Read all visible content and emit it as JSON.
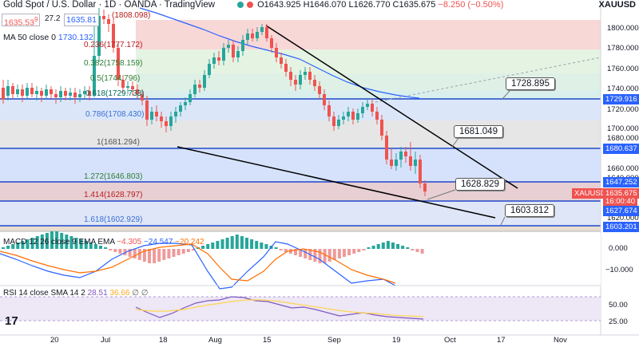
{
  "header": {
    "title": "Gold Spot / U.S. Dollar · 1D · OANDA · TradingView",
    "ohlc": {
      "o": "O1643.925",
      "h": "H1646.070",
      "l": "L1626.770",
      "c": "C1635.675",
      "chg": "−8.250 (−0.50%)"
    },
    "symbol": "XAUUSD",
    "sell_price": "1635.53",
    "sell_small": "9",
    "spread": "27.2",
    "buy_price": "1635.81"
  },
  "ma": {
    "label": "MA 50 close 0",
    "value": "1730.132"
  },
  "fib_levels": [
    {
      "label": "(1808.098)",
      "price": 1808.098
    },
    {
      "label": "0.236(1777.172)",
      "price": 1777.172
    },
    {
      "label": "0.382(1758.159)",
      "price": 1758.159
    },
    {
      "label": "0.5(1744.796)",
      "price": 1744.796
    },
    {
      "label": "0.618(1729.733)",
      "price": 1729.733
    },
    {
      "label": "0.786(1708.430)",
      "price": 1708.43
    },
    {
      "label": "1(1681.294)",
      "price": 1681.294
    },
    {
      "label": "1.272(1646.803)",
      "price": 1646.803
    },
    {
      "label": "1.414(1628.797)",
      "price": 1628.797
    },
    {
      "label": "1.618(1602.929)",
      "price": 1602.929
    }
  ],
  "callouts": [
    {
      "text": "1728.895"
    },
    {
      "text": "1681.049"
    },
    {
      "text": "1628.829"
    },
    {
      "text": "1603.812"
    }
  ],
  "price_axis": [
    "1800.000",
    "1780.000",
    "1760.000",
    "1740.000",
    "1720.000",
    "1700.000",
    "1680.000",
    "1660.000",
    "1640.000",
    "1620.000"
  ],
  "price_tags": [
    {
      "text": "1729.916",
      "color": "#2962ff"
    },
    {
      "text": "1680.637",
      "color": "#2962ff"
    },
    {
      "text": "1647.252",
      "color": "#2962ff"
    },
    {
      "text": "XAUUSD",
      "color": "#ef5350"
    },
    {
      "text": "1635.675",
      "color": "#ef5350"
    },
    {
      "text": "16:00:40",
      "color": "#ef5350"
    },
    {
      "text": "1627.674",
      "color": "#2962ff"
    },
    {
      "text": "1603.201",
      "color": "#2962ff"
    }
  ],
  "macd": {
    "label": "MACD 12 26 close 9 EMA EMA",
    "v1": "−4.305",
    "v2": "−24.547",
    "v3": "−20.242",
    "axis": [
      "0.000",
      "−10.000"
    ]
  },
  "rsi": {
    "label": "RSI 14 close SMA 14 2",
    "v1": "28.51",
    "v2": "36.66",
    "v3": "∅ ∅",
    "axis": [
      "50.00",
      "25.00"
    ]
  },
  "x_axis": [
    "20",
    "Jul",
    "18",
    "Aug",
    "15",
    "Sep",
    "19",
    "Oct",
    "17",
    "Nov"
  ],
  "colors": {
    "up": "#26a69a",
    "down": "#ef5350",
    "accent": "#2962ff",
    "trend": "#000000"
  }
}
